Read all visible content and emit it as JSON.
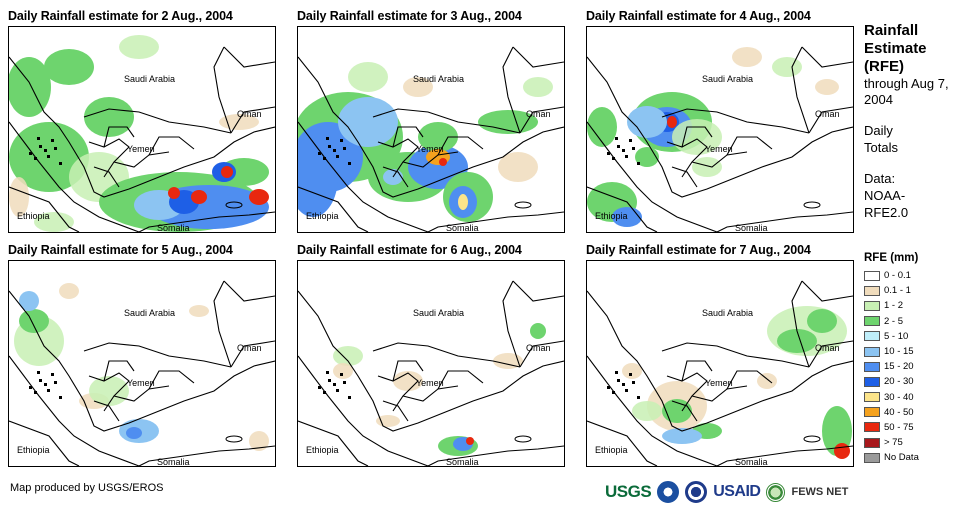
{
  "panels": [
    {
      "title": "Daily Rainfall estimate for 2 Aug., 2004",
      "day": 2
    },
    {
      "title": "Daily Rainfall estimate for 3 Aug., 2004",
      "day": 3
    },
    {
      "title": "Daily Rainfall estimate for 4 Aug., 2004",
      "day": 4
    },
    {
      "title": "Daily Rainfall estimate for 5 Aug., 2004",
      "day": 5
    },
    {
      "title": "Daily Rainfall estimate for 6 Aug., 2004",
      "day": 6
    },
    {
      "title": "Daily Rainfall estimate for 7 Aug., 2004",
      "day": 7
    }
  ],
  "map_labels": {
    "saudi": "Saudi Arabia",
    "oman": "Oman",
    "yemen": "Yemen",
    "ethiopia": "Ethiopia",
    "somalia": "Somalia"
  },
  "side": {
    "title": "Rainfall Estimate (RFE)",
    "through": "through Aug 7, 2004",
    "totals": "Daily Totals",
    "source": "Data: NOAA-RFE2.0"
  },
  "legend": {
    "title": "RFE (mm)",
    "items": [
      {
        "label": "0 - 0.1",
        "color": "#ffffff"
      },
      {
        "label": "0.1 - 1",
        "color": "#f0dcbc"
      },
      {
        "label": "1 - 2",
        "color": "#c8f0b4"
      },
      {
        "label": "2 - 5",
        "color": "#6ed46e"
      },
      {
        "label": "5 - 10",
        "color": "#bfeefa"
      },
      {
        "label": "10 - 15",
        "color": "#8cc4f2"
      },
      {
        "label": "15 - 20",
        "color": "#4f8ef0"
      },
      {
        "label": "20 - 30",
        "color": "#1e5fe6"
      },
      {
        "label": "30 - 40",
        "color": "#fce48a"
      },
      {
        "label": "40 - 50",
        "color": "#f5a21e"
      },
      {
        "label": "50 - 75",
        "color": "#e8280f"
      },
      {
        "label": "> 75",
        "color": "#a8181c"
      },
      {
        "label": "No Data",
        "color": "#9a9a9a"
      }
    ]
  },
  "credit": "Map produced by USGS/EROS",
  "logos": {
    "usgs": "USGS",
    "usaid": "USAID",
    "fews": "FEWS NET"
  }
}
